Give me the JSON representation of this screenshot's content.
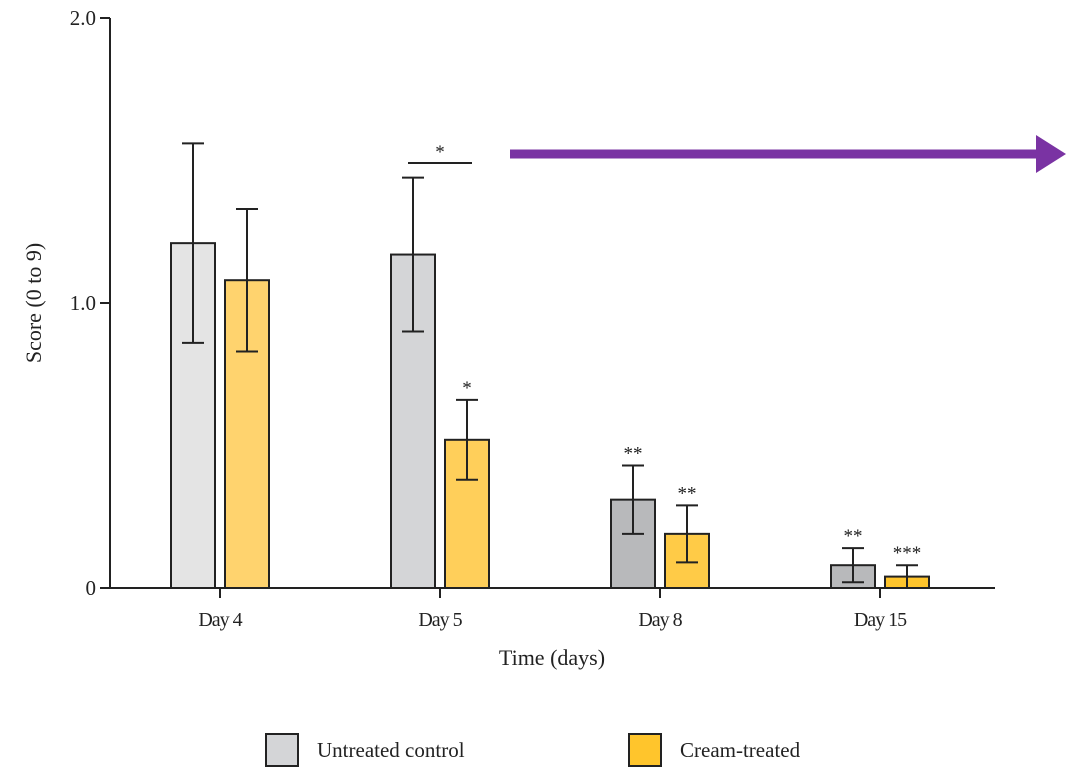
{
  "chart_data": {
    "type": "bar",
    "categories": [
      "Day 4",
      "Day 5",
      "Day 8",
      "Day 15"
    ],
    "series": [
      {
        "name": "Untreated control",
        "values": [
          1.21,
          1.17,
          0.31,
          0.08
        ],
        "errors": [
          0.35,
          0.27,
          0.12,
          0.06
        ],
        "significance": [
          "",
          "",
          "**",
          "**"
        ]
      },
      {
        "name": "Cream-treated",
        "values": [
          1.08,
          0.52,
          0.19,
          0.04
        ],
        "errors": [
          0.25,
          0.14,
          0.1,
          0.04
        ],
        "significance": [
          "",
          "*",
          "**",
          "***"
        ]
      }
    ],
    "bracket": {
      "category": "Day 5",
      "label": "*"
    },
    "xlabel": "Time (days)",
    "ylabel": "Score (0 to 9)",
    "ylim": [
      0,
      2.0
    ],
    "yticks": [
      0,
      1.0,
      2.0
    ],
    "ytick_labels": [
      "0",
      "1.0",
      "2.0"
    ],
    "grid": false,
    "legend_position": "bottom",
    "colors": {
      "Untreated control": [
        "#e4e4e4",
        "#d4d5d7",
        "#b8b9bb",
        "#b8b9bb"
      ],
      "Cream-treated": [
        "#ffd36e",
        "#ffcf5a",
        "#ffcb47",
        "#ffc52c"
      ],
      "arrow": "#7a33a3",
      "axis": "#222222"
    }
  },
  "legend": {
    "items": [
      {
        "label": "Untreated control",
        "color": "#d4d5d7"
      },
      {
        "label": "Cream-treated",
        "color": "#ffc52c"
      }
    ]
  }
}
